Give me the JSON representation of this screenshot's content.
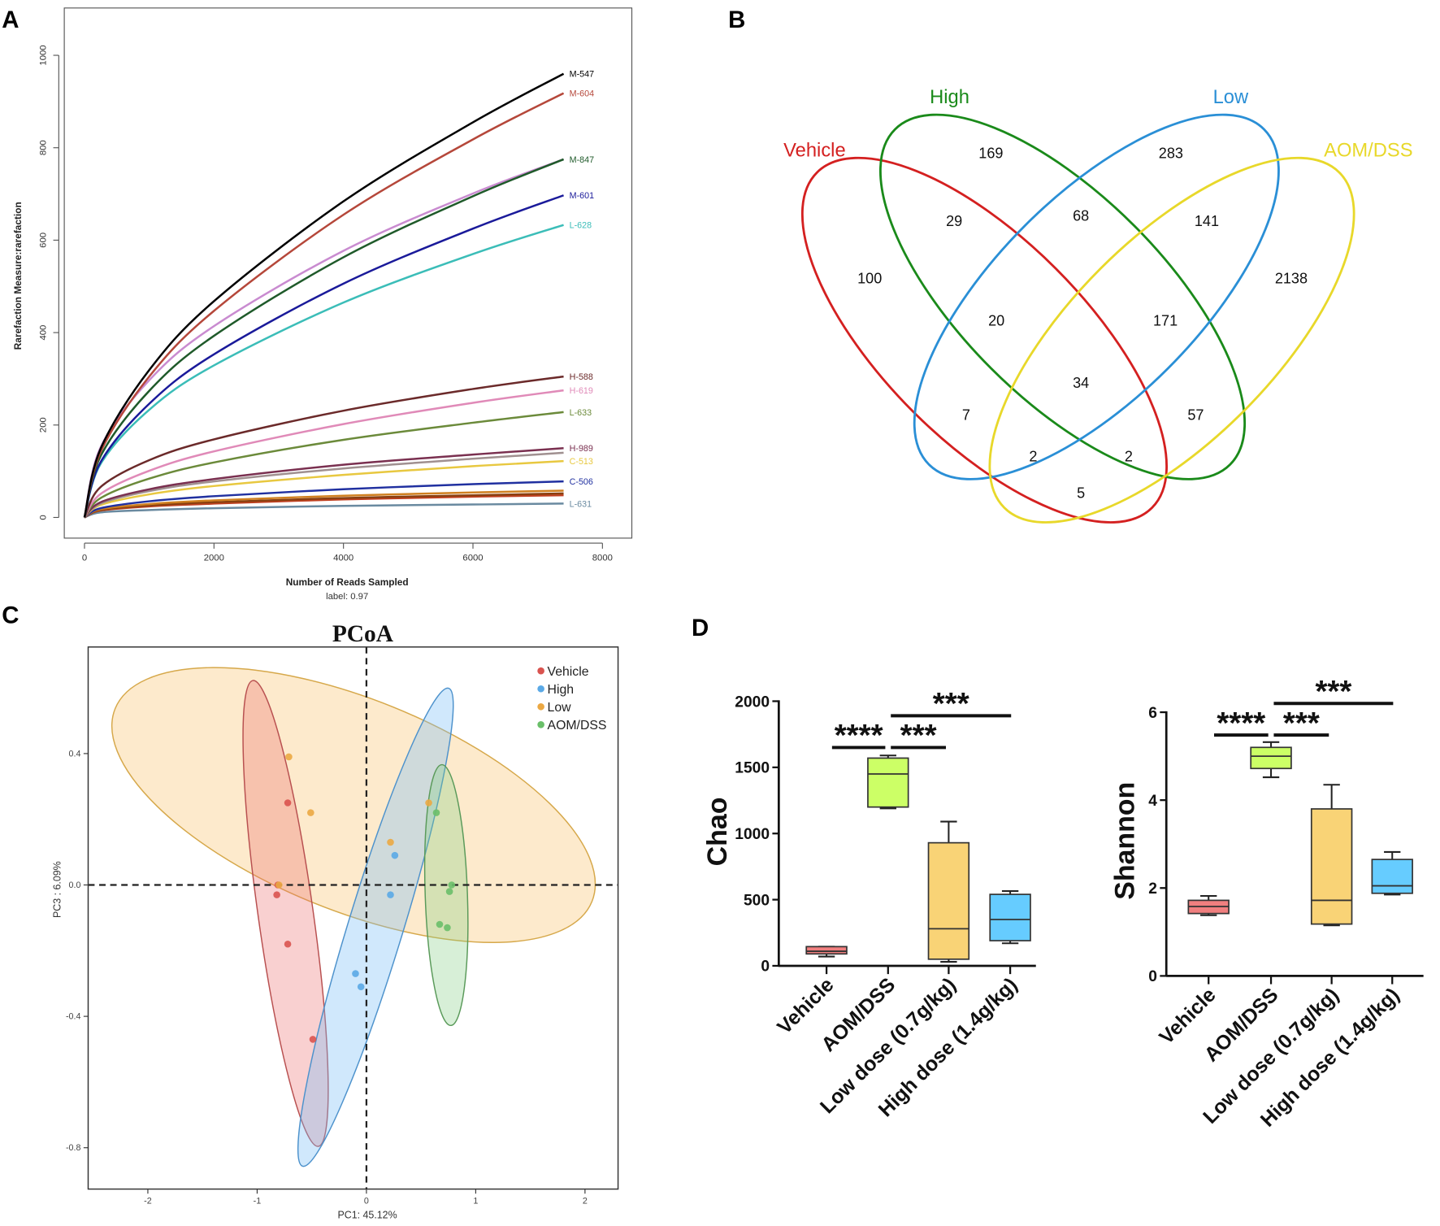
{
  "panels": {
    "A": "A",
    "B": "B",
    "C": "C",
    "D": "D"
  },
  "chart_data": [
    {
      "type": "line",
      "panel": "A",
      "xlabel": "Number of Reads Sampled",
      "subtitle": "label: 0.97",
      "ylabel": "Rarefaction Measure:rarefaction",
      "xlim": [
        0,
        8000
      ],
      "ylim": [
        0,
        1000
      ],
      "xticks": [
        "0",
        "2000",
        "4000",
        "6000",
        "8000"
      ],
      "yticks": [
        "0",
        "200",
        "400",
        "600",
        "800",
        "1000"
      ],
      "x": [
        0,
        250,
        1000,
        2000,
        4000,
        6000,
        7400
      ],
      "series": [
        {
          "name": "M-547",
          "color": "#000000",
          "values": [
            0,
            149,
            319,
            468,
            684,
            855,
            960
          ]
        },
        {
          "name": "M-604",
          "color": "#b5473a",
          "values": [
            0,
            142,
            305,
            447,
            655,
            818,
            918
          ]
        },
        {
          "name": "M-847",
          "color": "#1f5a2a",
          "values": [
            0,
            133,
            274,
            393,
            563,
            695,
            775
          ]
        },
        {
          "color": "#c98bd0",
          "values": [
            0,
            152,
            297,
            414,
            577,
            701,
            775
          ]
        },
        {
          "name": "M-601",
          "color": "#1a1a9a",
          "values": [
            0,
            120,
            246,
            353,
            506,
            625,
            697
          ]
        },
        {
          "name": "L-628",
          "color": "#3bbdb8",
          "values": [
            0,
            116,
            233,
            329,
            465,
            570,
            633
          ]
        },
        {
          "name": "H-588",
          "color": "#6b2a2a",
          "values": [
            0,
            66,
            124,
            169,
            231,
            278,
            305
          ]
        },
        {
          "name": "H-619",
          "color": "#e08ab8",
          "values": [
            0,
            51,
            101,
            143,
            202,
            248,
            275
          ]
        },
        {
          "name": "L-633",
          "color": "#6b8a3a",
          "values": [
            0,
            42,
            84,
            119,
            168,
            205,
            228
          ]
        },
        {
          "name": "H-989",
          "color": "#7a3050",
          "values": [
            0,
            33,
            61,
            83,
            114,
            136,
            150
          ]
        },
        {
          "color": "#a09090",
          "values": [
            0,
            30,
            57,
            78,
            106,
            127,
            140
          ]
        },
        {
          "name": "C-513",
          "color": "#e8c840",
          "values": [
            0,
            27,
            50,
            68,
            92,
            111,
            122
          ]
        },
        {
          "name": "C-506",
          "color": "#2030a0",
          "values": [
            0,
            20,
            35,
            46,
            61,
            72,
            78
          ]
        },
        {
          "color": "#d08020",
          "values": [
            0,
            18,
            29,
            37,
            47,
            54,
            58
          ]
        },
        {
          "color": "#8a4010",
          "values": [
            0,
            16,
            26,
            33,
            42,
            48,
            52
          ]
        },
        {
          "color": "#c04020",
          "values": [
            0,
            15,
            24,
            30,
            39,
            45,
            48
          ]
        },
        {
          "name": "L-631",
          "color": "#6a8aa0",
          "values": [
            0,
            11,
            16,
            20,
            25,
            28,
            30
          ]
        }
      ]
    },
    {
      "type": "venn",
      "panel": "B",
      "sets": [
        {
          "name": "Vehicle",
          "color": "#d42020"
        },
        {
          "name": "High",
          "color": "#1a8a1a"
        },
        {
          "name": "Low",
          "color": "#2a8fd6"
        },
        {
          "name": "AOM/DSS",
          "color": "#e8d82a"
        }
      ],
      "regions": [
        {
          "sets": [
            "High"
          ],
          "value": "169"
        },
        {
          "sets": [
            "Low"
          ],
          "value": "283"
        },
        {
          "sets": [
            "Vehicle",
            "High"
          ],
          "value": "29"
        },
        {
          "sets": [
            "High",
            "Low"
          ],
          "value": "68"
        },
        {
          "sets": [
            "Low",
            "AOM/DSS"
          ],
          "value": "141"
        },
        {
          "sets": [
            "Vehicle"
          ],
          "value": "100"
        },
        {
          "sets": [
            "AOM/DSS"
          ],
          "value": "2138"
        },
        {
          "sets": [
            "Vehicle",
            "High",
            "Low"
          ],
          "value": "20"
        },
        {
          "sets": [
            "High",
            "Low",
            "AOM/DSS"
          ],
          "value": "171"
        },
        {
          "sets": [
            "Vehicle",
            "High",
            "Low",
            "AOM/DSS"
          ],
          "value": "34"
        },
        {
          "sets": [
            "Vehicle",
            "Low"
          ],
          "value": "7"
        },
        {
          "sets": [
            "High",
            "AOM/DSS"
          ],
          "value": "57"
        },
        {
          "sets": [
            "Vehicle",
            "Low",
            "AOM/DSS"
          ],
          "value": "2"
        },
        {
          "sets": [
            "Vehicle",
            "High",
            "AOM/DSS"
          ],
          "value": "2"
        },
        {
          "sets": [
            "Vehicle",
            "AOM/DSS"
          ],
          "value": "5"
        }
      ]
    },
    {
      "type": "scatter",
      "panel": "C",
      "title": "PCoA",
      "xlabel": "PC1: 45.12%",
      "ylabel": "PC3 : 6.09%",
      "xticks": [
        "-2",
        "-1",
        "0",
        "1",
        "2"
      ],
      "xtick_values": [
        -2,
        -1,
        0,
        1,
        2
      ],
      "yticks": [
        "0.4",
        "0.0",
        "-0.4",
        "-0.8"
      ],
      "ytick_values": [
        0.4,
        0,
        -0.4,
        -0.8
      ],
      "legend": "top-right",
      "reference_lines": {
        "x": 0,
        "y": 0,
        "style": "dashed"
      },
      "series": [
        {
          "name": "Vehicle",
          "color": "#d9534f",
          "points": [
            [
              -0.72,
              0.25
            ],
            [
              -0.81,
              0.0
            ],
            [
              -0.82,
              -0.03
            ],
            [
              -0.72,
              -0.18
            ],
            [
              -0.49,
              -0.47
            ]
          ]
        },
        {
          "name": "High",
          "color": "#5aa9e6",
          "points": [
            [
              0.26,
              0.09
            ],
            [
              0.22,
              -0.03
            ],
            [
              -0.1,
              -0.27
            ],
            [
              -0.05,
              -0.31
            ]
          ]
        },
        {
          "name": "Low",
          "color": "#eba843",
          "points": [
            [
              -0.71,
              0.39
            ],
            [
              -0.51,
              0.22
            ],
            [
              0.22,
              0.13
            ],
            [
              0.57,
              0.25
            ],
            [
              -0.8,
              0.0
            ]
          ]
        },
        {
          "name": "AOM/DSS",
          "color": "#6abf69",
          "points": [
            [
              0.64,
              0.22
            ],
            [
              0.78,
              0.0
            ],
            [
              0.76,
              -0.02
            ],
            [
              0.67,
              -0.12
            ],
            [
              0.74,
              -0.13
            ]
          ]
        }
      ]
    },
    {
      "type": "box",
      "panel": "D",
      "ylabel": "Chao",
      "ylim": [
        0,
        2000
      ],
      "yticks": [
        "0",
        "500",
        "1000",
        "1500",
        "2000"
      ],
      "ytick_values": [
        0,
        500,
        1000,
        1500,
        2000
      ],
      "categories": [
        "Vehicle",
        "AOM/DSS",
        "Low  dose (0.7g/kg)",
        "High  dose (1.4g/kg)"
      ],
      "boxes": [
        {
          "min": 70,
          "q1": 90,
          "median": 110,
          "q3": 145,
          "max": 145,
          "color": "#f07f7f"
        },
        {
          "min": 1190,
          "q1": 1200,
          "median": 1450,
          "q3": 1570,
          "max": 1590,
          "color": "#ccff66"
        },
        {
          "min": 30,
          "q1": 50,
          "median": 280,
          "q3": 930,
          "max": 1090,
          "color": "#f9d376"
        },
        {
          "min": 170,
          "q1": 190,
          "median": 350,
          "q3": 540,
          "max": 565,
          "color": "#66ccff"
        }
      ],
      "significance": [
        {
          "from": 0,
          "to": 1,
          "label": "****",
          "y": 1650
        },
        {
          "from": 1,
          "to": 2,
          "label": "***",
          "y": 1650
        },
        {
          "from": 1,
          "to": 3,
          "label": "***",
          "y": 1890
        }
      ]
    },
    {
      "type": "box",
      "panel": "D",
      "ylabel": "Shannon",
      "ylim": [
        0,
        6
      ],
      "yticks": [
        "0",
        "2",
        "4",
        "6"
      ],
      "ytick_values": [
        0,
        2,
        4,
        6
      ],
      "categories": [
        "Vehicle",
        "AOM/DSS",
        "Low  dose (0.7g/kg)",
        "High  dose (1.4g/kg)"
      ],
      "boxes": [
        {
          "min": 1.38,
          "q1": 1.42,
          "median": 1.58,
          "q3": 1.72,
          "max": 1.82,
          "color": "#f07f7f"
        },
        {
          "min": 4.52,
          "q1": 4.72,
          "median": 5.0,
          "q3": 5.2,
          "max": 5.32,
          "color": "#ccff66"
        },
        {
          "min": 1.15,
          "q1": 1.18,
          "median": 1.72,
          "q3": 3.8,
          "max": 4.35,
          "color": "#f9d376"
        },
        {
          "min": 1.85,
          "q1": 1.88,
          "median": 2.05,
          "q3": 2.65,
          "max": 2.82,
          "color": "#66ccff"
        }
      ],
      "significance": [
        {
          "from": 0,
          "to": 1,
          "label": "****",
          "y": 5.48
        },
        {
          "from": 1,
          "to": 2,
          "label": "***",
          "y": 5.48
        },
        {
          "from": 1,
          "to": 3,
          "label": "***",
          "y": 6.2
        }
      ]
    }
  ]
}
